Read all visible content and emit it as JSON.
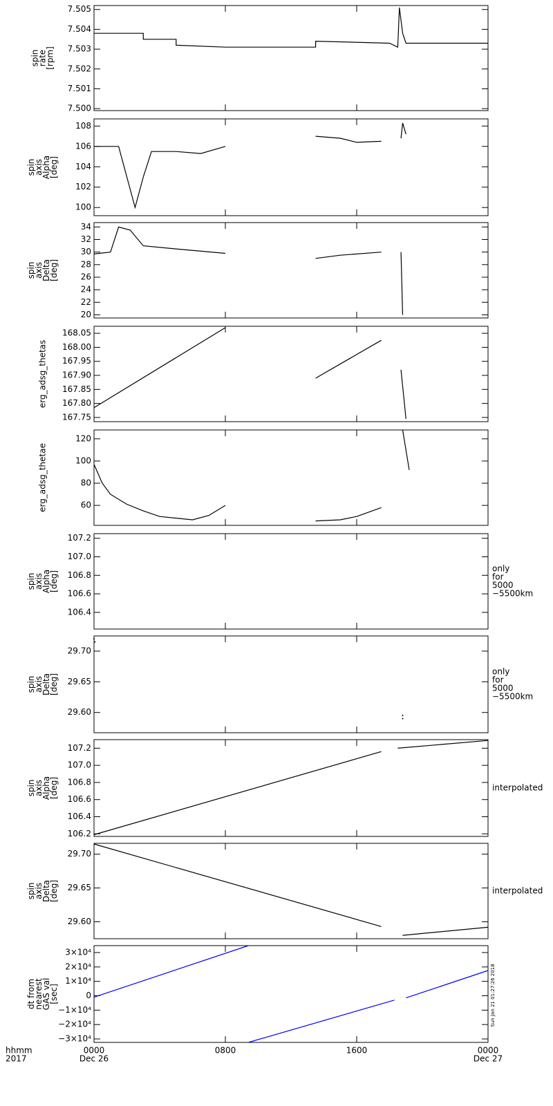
{
  "chart_data": [
    {
      "type": "line",
      "ylabel": [
        "spin",
        "rate",
        "[rpm]"
      ],
      "color": "#000000",
      "ylim": [
        7.4999,
        7.5052
      ],
      "yticks": [
        {
          "value": 7.5,
          "label": "7.500"
        },
        7.501,
        7.502,
        7.503,
        7.504,
        7.505
      ],
      "x": [
        0,
        3,
        3,
        5,
        5,
        8,
        13.5,
        13.5,
        18,
        18.5,
        18.6,
        18.8,
        19,
        24
      ],
      "values": [
        7.5038,
        7.5038,
        7.5035,
        7.5035,
        7.5032,
        7.5031,
        7.5031,
        7.5034,
        7.5033,
        7.5031,
        7.5051,
        7.5038,
        7.5033,
        7.5033
      ]
    },
    {
      "type": "line",
      "ylabel": [
        "spin",
        "axis",
        "Alpha",
        "[deg]"
      ],
      "color": "#000000",
      "ylim": [
        99.2,
        108.7
      ],
      "yticks": [
        100,
        102,
        104,
        106,
        108
      ],
      "x": [
        0,
        1.5,
        2,
        2.5,
        3,
        3.5,
        5,
        6.5,
        8,
        8,
        13.5,
        15,
        16,
        17.5,
        17.5,
        18.7,
        18.8,
        19
      ],
      "values": [
        106,
        106,
        103,
        100,
        103,
        105.5,
        105.5,
        105.3,
        106,
        null,
        107,
        106.8,
        106.4,
        106.5,
        null,
        106.8,
        108.3,
        107.2
      ]
    },
    {
      "type": "line",
      "ylabel": [
        "spin",
        "axis",
        "Delta",
        "[deg]"
      ],
      "color": "#000000",
      "ylim": [
        19.5,
        34.7
      ],
      "yticks": [
        20,
        22,
        24,
        26,
        28,
        30,
        32,
        34
      ],
      "x": [
        0,
        1,
        1.5,
        2.2,
        3,
        5,
        8,
        8,
        13.5,
        15,
        17.5,
        17.5,
        18.7,
        18.8
      ],
      "values": [
        29.7,
        30,
        34,
        33.5,
        31,
        30.5,
        29.8,
        null,
        29,
        29.5,
        30,
        null,
        30,
        20
      ]
    },
    {
      "type": "line",
      "ylabel": [
        "erg_adsg_thetas"
      ],
      "color": "#000000",
      "ylim": [
        167.735,
        168.075
      ],
      "yticks": [
        {
          "value": 167.75,
          "label": "167.75"
        },
        {
          "value": 167.8,
          "label": "167.80"
        },
        167.85,
        {
          "value": 167.9,
          "label": "167.90"
        },
        167.95,
        {
          "value": 168,
          "label": "168.00"
        },
        168.05
      ],
      "x": [
        0,
        8,
        8,
        13.5,
        17.5,
        17.5,
        18.7,
        19
      ],
      "values": [
        167.785,
        168.07,
        null,
        167.89,
        168.025,
        null,
        167.92,
        167.745
      ]
    },
    {
      "type": "line",
      "ylabel": [
        "erg_adsg_thetae"
      ],
      "color": "#000000",
      "ylim": [
        42,
        128
      ],
      "yticks": [
        60,
        80,
        100,
        120
      ],
      "x": [
        0,
        0.5,
        1,
        2,
        3,
        4,
        6,
        7,
        8,
        8,
        13.5,
        15,
        16,
        17.5,
        17.5,
        18.8,
        19.2
      ],
      "values": [
        97,
        80,
        70,
        61,
        55,
        50,
        47,
        51,
        60,
        null,
        46,
        47,
        50,
        58,
        null,
        128,
        92
      ]
    },
    {
      "type": "line",
      "ylabel": [
        "spin",
        "axis",
        "Alpha",
        "[deg]"
      ],
      "color": "#000000",
      "note": [
        "only",
        "for",
        "5000",
        "−5500km"
      ],
      "ylim": [
        106.22,
        107.25
      ],
      "yticks": [
        106.4,
        106.6,
        106.8,
        {
          "value": 107,
          "label": "107.0"
        },
        107.2
      ],
      "x": [],
      "values": []
    },
    {
      "type": "scatter",
      "ylabel": [
        "spin",
        "axis",
        "Delta",
        "[deg]"
      ],
      "color": "#000000",
      "note": [
        "only",
        "for",
        "5000",
        "−5500km"
      ],
      "ylim": [
        29.567,
        29.7247
      ],
      "yticks": [
        {
          "value": 29.6,
          "label": "29.60"
        },
        29.65,
        {
          "value": 29.7,
          "label": "29.70"
        }
      ],
      "x": [
        0,
        0.05,
        18.8,
        18.8
      ],
      "values": [
        29.72,
        29.715,
        29.59,
        29.595
      ]
    },
    {
      "type": "line",
      "ylabel": [
        "spin",
        "axis",
        "Alpha",
        "[deg]"
      ],
      "color": "#000000",
      "note": [
        "interpolated"
      ],
      "ylim": [
        106.17,
        107.3
      ],
      "yticks": [
        106.2,
        106.4,
        106.6,
        106.8,
        {
          "value": 107,
          "label": "107.0"
        },
        107.2
      ],
      "x": [
        0,
        17.5,
        17.5,
        18.5,
        24
      ],
      "values": [
        106.19,
        107.16,
        null,
        107.2,
        107.29
      ]
    },
    {
      "type": "line",
      "ylabel": [
        "spin",
        "axis",
        "Delta",
        "[deg]"
      ],
      "color": "#000000",
      "note": [
        "interpolated"
      ],
      "ylim": [
        29.575,
        29.716
      ],
      "yticks": [
        {
          "value": 29.6,
          "label": "29.60"
        },
        29.65,
        {
          "value": 29.7,
          "label": "29.70"
        }
      ],
      "x": [
        0,
        17.5,
        17.5,
        18.8,
        24
      ],
      "values": [
        29.715,
        29.593,
        null,
        29.58,
        29.592
      ]
    },
    {
      "type": "line",
      "ylabel": [
        "dt from",
        "nearest",
        "GAS val",
        "[sec]"
      ],
      "color": "#0000ff",
      "ylim": [
        -32400,
        34800
      ],
      "yticks": [
        {
          "value": -30000,
          "label": "−3×10⁴"
        },
        {
          "value": -20000,
          "label": "−2×10⁴"
        },
        {
          "value": -10000,
          "label": "−1×10⁴"
        },
        0,
        {
          "value": 10000,
          "label": "1×10⁴"
        },
        {
          "value": 20000,
          "label": "2×10⁴"
        },
        {
          "value": 30000,
          "label": "3×10⁴"
        }
      ],
      "x": [
        0,
        9.4,
        9.4,
        9.4,
        18.3,
        18.3,
        19,
        24
      ],
      "values": [
        -1000,
        34800,
        null,
        -32400,
        -3000,
        null,
        -1500,
        17500
      ]
    }
  ],
  "xaxis": {
    "xlim": [
      0,
      24
    ],
    "xticks": [
      {
        "value": 0,
        "label": "0000"
      },
      {
        "value": 8,
        "label": "0800"
      },
      {
        "value": 16,
        "label": "1600"
      },
      {
        "value": 24,
        "label": "0000"
      }
    ],
    "date_labels": [
      {
        "value": 0,
        "label": "Dec 26"
      },
      {
        "value": 24,
        "label": "Dec 27"
      }
    ],
    "unit_label": [
      "hhmm",
      "2017"
    ]
  },
  "timestamp": "Sun Jan 21 01:27:26 2018"
}
